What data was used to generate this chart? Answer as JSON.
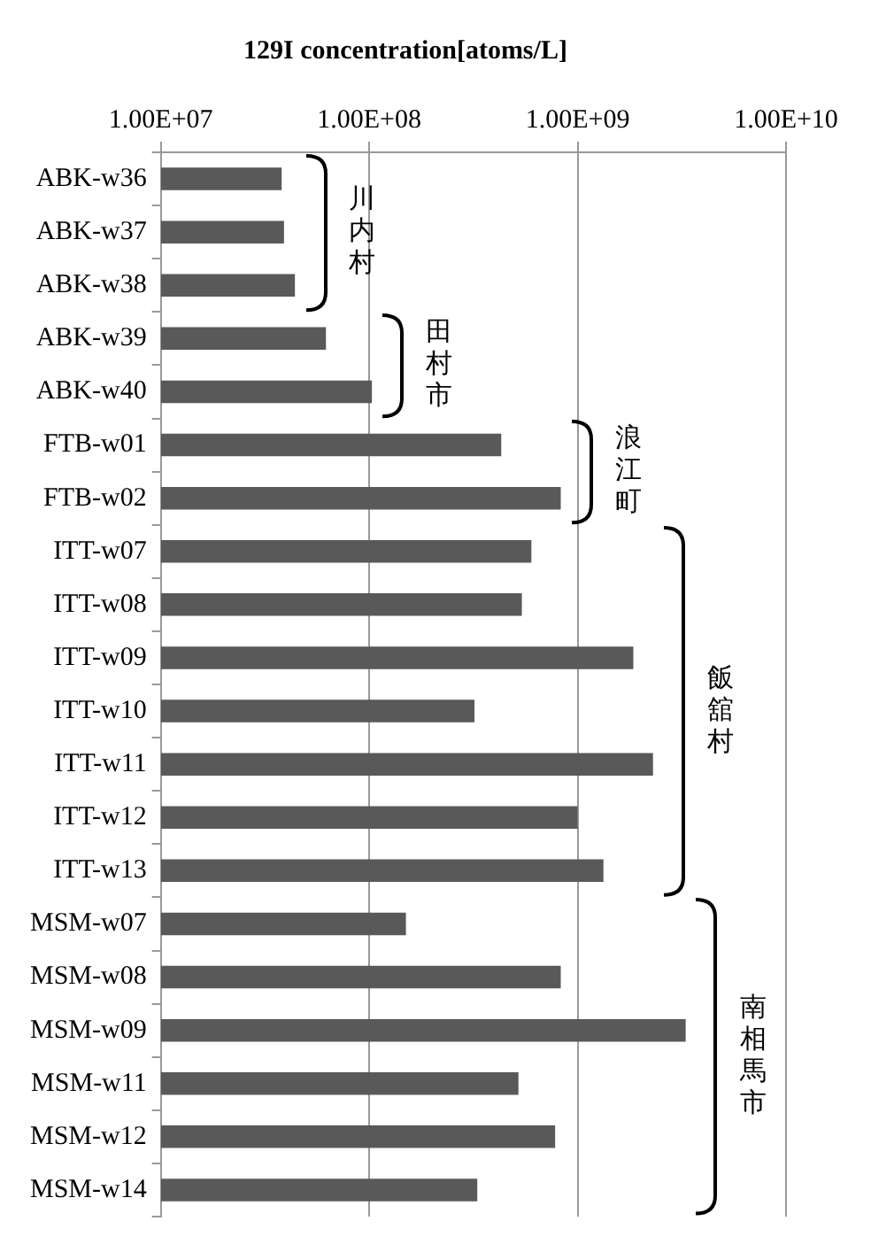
{
  "chart_data": {
    "type": "bar",
    "orientation": "horizontal",
    "title": "129I concentration[atoms/L]",
    "categories": [
      "ABK-w36",
      "ABK-w37",
      "ABK-w38",
      "ABK-w39",
      "ABK-w40",
      "FTB-w01",
      "FTB-w02",
      "ITT-w07",
      "ITT-w08",
      "ITT-w09",
      "ITT-w10",
      "ITT-w11",
      "ITT-w12",
      "ITT-w13",
      "MSM-w07",
      "MSM-w08",
      "MSM-w09",
      "MSM-w11",
      "MSM-w12",
      "MSM-w14"
    ],
    "values": [
      38000000.0,
      39000000.0,
      44000000.0,
      62000000.0,
      103000000.0,
      430000000.0,
      830000000.0,
      600000000.0,
      540000000.0,
      1850000000.0,
      320000000.0,
      2300000000.0,
      1000000000.0,
      1330000000.0,
      150000000.0,
      830000000.0,
      3300000000.0,
      520000000.0,
      780000000.0,
      330000000.0
    ],
    "color": "#595959",
    "log": "x",
    "xlim": [
      10000000.0,
      10000000000.0
    ],
    "xticks": [
      {
        "value": 10000000.0,
        "label": "1.00E+07"
      },
      {
        "value": 100000000.0,
        "label": "1.00E+08"
      },
      {
        "value": 1000000000.0,
        "label": "1.00E+09"
      },
      {
        "value": 10000000000.0,
        "label": "1.00E+10"
      }
    ],
    "grid": "x",
    "legend": false,
    "annotations": [
      "川内村",
      "田村市",
      "浪江町",
      "飯舘村",
      "南相馬市"
    ]
  }
}
